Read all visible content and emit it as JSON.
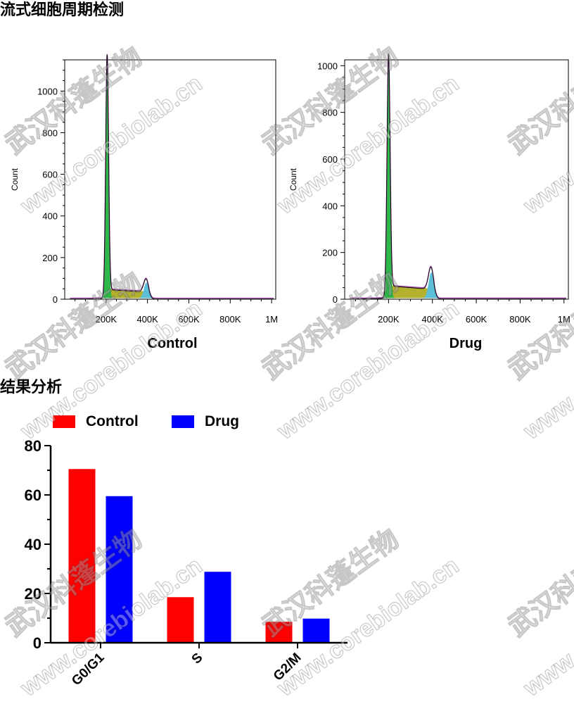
{
  "sections": {
    "flow_title": "流式细胞周期检测",
    "result_title": "结果分析"
  },
  "watermark": {
    "company": "武汉科蓬生物",
    "url": "www.corebiolab.cn"
  },
  "colors": {
    "g1_peak": "#2fb84a",
    "s_phase": "#b3b12e",
    "g2_peak": "#5bbfd8",
    "outline": "#a04aa8",
    "control": "#ff0000",
    "drug": "#0000ff"
  },
  "chart_data": [
    {
      "type": "area",
      "title": "Control",
      "ylabel": "Count",
      "x_ticks": [
        "200K",
        "400K",
        "600K",
        "800K",
        "1M"
      ],
      "x_tick_values": [
        200000,
        400000,
        600000,
        800000,
        1000000
      ],
      "y_ticks": [
        "0",
        "200",
        "400",
        "600",
        "800",
        "1000"
      ],
      "xlim": [
        0,
        1020000
      ],
      "ylim": [
        0,
        1150
      ],
      "peak_g1": {
        "x": 205000,
        "height": 1150
      },
      "peak_g2": {
        "x": 395000,
        "height": 75
      },
      "s_plateau": 45
    },
    {
      "type": "area",
      "title": "Drug",
      "ylabel": "Count",
      "x_ticks": [
        "200K",
        "400K",
        "600K",
        "800K",
        "1M"
      ],
      "x_tick_values": [
        200000,
        400000,
        600000,
        800000,
        1000000
      ],
      "y_ticks": [
        "0",
        "200",
        "400",
        "600",
        "800",
        "1000"
      ],
      "xlim": [
        0,
        1020000
      ],
      "ylim": [
        0,
        1025
      ],
      "peak_g1": {
        "x": 200000,
        "height": 1020
      },
      "peak_g2": {
        "x": 395000,
        "height": 110
      },
      "s_plateau": 55
    },
    {
      "type": "bar",
      "categories": [
        "G0/G1",
        "S",
        "G2/M"
      ],
      "series": [
        {
          "name": "Control",
          "values": [
            70.5,
            18.5,
            8.5
          ]
        },
        {
          "name": "Drug",
          "values": [
            59.5,
            28.8,
            9.8
          ]
        }
      ],
      "y_ticks": [
        "0",
        "20",
        "40",
        "60",
        "80"
      ],
      "ylim": [
        0,
        80
      ],
      "legend": "top"
    }
  ]
}
